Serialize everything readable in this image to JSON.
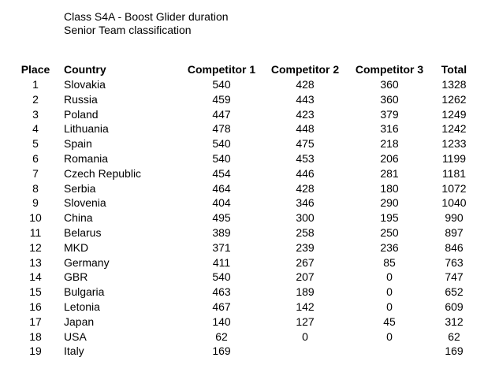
{
  "document": {
    "title_line1": "Class S4A - Boost Glider duration",
    "title_line2": "Senior Team classification"
  },
  "table": {
    "headers": {
      "place": "Place",
      "country": "Country",
      "competitor1": "Competitor 1",
      "competitor2": "Competitor 2",
      "competitor3": "Competitor 3",
      "total": "Total"
    },
    "rows": [
      {
        "place": "1",
        "country": "Slovakia",
        "c1": "540",
        "c2": "428",
        "c3": "360",
        "total": "1328"
      },
      {
        "place": "2",
        "country": "Russia",
        "c1": "459",
        "c2": "443",
        "c3": "360",
        "total": "1262"
      },
      {
        "place": "3",
        "country": "Poland",
        "c1": "447",
        "c2": "423",
        "c3": "379",
        "total": "1249"
      },
      {
        "place": "4",
        "country": "Lithuania",
        "c1": "478",
        "c2": "448",
        "c3": "316",
        "total": "1242"
      },
      {
        "place": "5",
        "country": "Spain",
        "c1": "540",
        "c2": "475",
        "c3": "218",
        "total": "1233"
      },
      {
        "place": "6",
        "country": "Romania",
        "c1": "540",
        "c2": "453",
        "c3": "206",
        "total": "1199"
      },
      {
        "place": "7",
        "country": "Czech Republic",
        "c1": "454",
        "c2": "446",
        "c3": "281",
        "total": "1181"
      },
      {
        "place": "8",
        "country": "Serbia",
        "c1": "464",
        "c2": "428",
        "c3": "180",
        "total": "1072"
      },
      {
        "place": "9",
        "country": "Slovenia",
        "c1": "404",
        "c2": "346",
        "c3": "290",
        "total": "1040"
      },
      {
        "place": "10",
        "country": "China",
        "c1": "495",
        "c2": "300",
        "c3": "195",
        "total": "990"
      },
      {
        "place": "11",
        "country": "Belarus",
        "c1": "389",
        "c2": "258",
        "c3": "250",
        "total": "897"
      },
      {
        "place": "12",
        "country": "MKD",
        "c1": "371",
        "c2": "239",
        "c3": "236",
        "total": "846"
      },
      {
        "place": "13",
        "country": "Germany",
        "c1": "411",
        "c2": "267",
        "c3": "85",
        "total": "763"
      },
      {
        "place": "14",
        "country": "GBR",
        "c1": "540",
        "c2": "207",
        "c3": "0",
        "total": "747"
      },
      {
        "place": "15",
        "country": "Bulgaria",
        "c1": "463",
        "c2": "189",
        "c3": "0",
        "total": "652"
      },
      {
        "place": "16",
        "country": "Letonia",
        "c1": "467",
        "c2": "142",
        "c3": "0",
        "total": "609"
      },
      {
        "place": "17",
        "country": "Japan",
        "c1": "140",
        "c2": "127",
        "c3": "45",
        "total": "312"
      },
      {
        "place": "18",
        "country": "USA",
        "c1": "62",
        "c2": "0",
        "c3": "0",
        "total": "62"
      },
      {
        "place": "19",
        "country": "Italy",
        "c1": "169",
        "c2": "",
        "c3": "",
        "total": "169"
      }
    ]
  }
}
